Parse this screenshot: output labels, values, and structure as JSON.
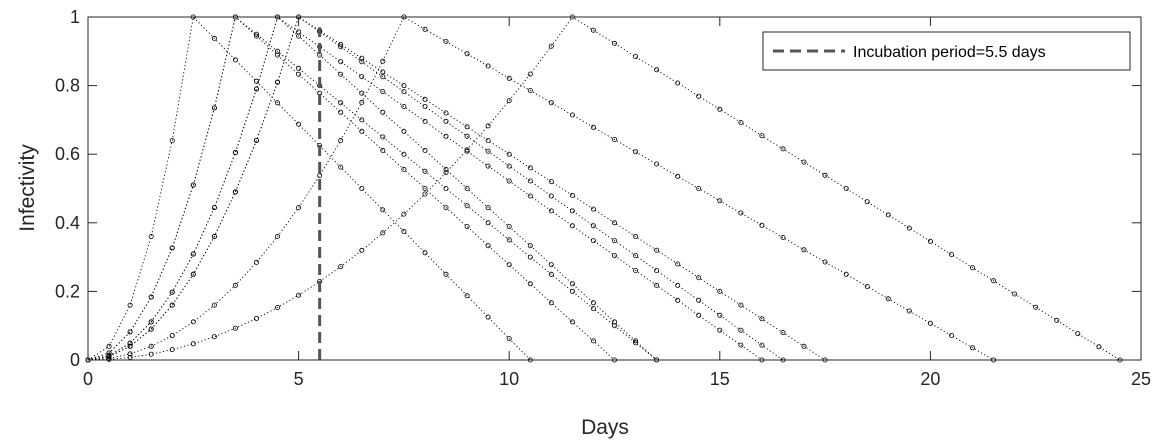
{
  "chart_data": {
    "type": "line",
    "xlabel": "Days",
    "ylabel": "Infectivity",
    "xlim": [
      0,
      25
    ],
    "ylim": [
      0,
      1
    ],
    "xticks": [
      0,
      5,
      10,
      15,
      20,
      25
    ],
    "yticks": [
      0,
      0.2,
      0.4,
      0.6,
      0.8,
      1
    ],
    "xtick_labels": [
      "0",
      "5",
      "10",
      "15",
      "20",
      "25"
    ],
    "ytick_labels": [
      "0",
      "0.2",
      "0.4",
      "0.6",
      "0.8",
      "1"
    ],
    "grid": false,
    "legend_position": "top-right",
    "marker": "open-circle",
    "sample_step_days": 0.5,
    "series": [
      {
        "peak_day": 2.5,
        "end_day": 10.5
      },
      {
        "peak_day": 3.5,
        "end_day": 12.5
      },
      {
        "peak_day": 3.5,
        "end_day": 13.5
      },
      {
        "peak_day": 4.5,
        "end_day": 13.5
      },
      {
        "peak_day": 4.5,
        "end_day": 16.0
      },
      {
        "peak_day": 5.0,
        "end_day": 16.5
      },
      {
        "peak_day": 5.0,
        "end_day": 17.5
      },
      {
        "peak_day": 7.5,
        "end_day": 21.5
      },
      {
        "peak_day": 11.5,
        "end_day": 24.5
      }
    ],
    "reference_line": {
      "x": 5.5,
      "label": "Incubation period=5.5 days",
      "style": "dashed"
    },
    "colors": {
      "series": "#000000",
      "reference_line": "#555555",
      "axes": "#262626"
    }
  }
}
